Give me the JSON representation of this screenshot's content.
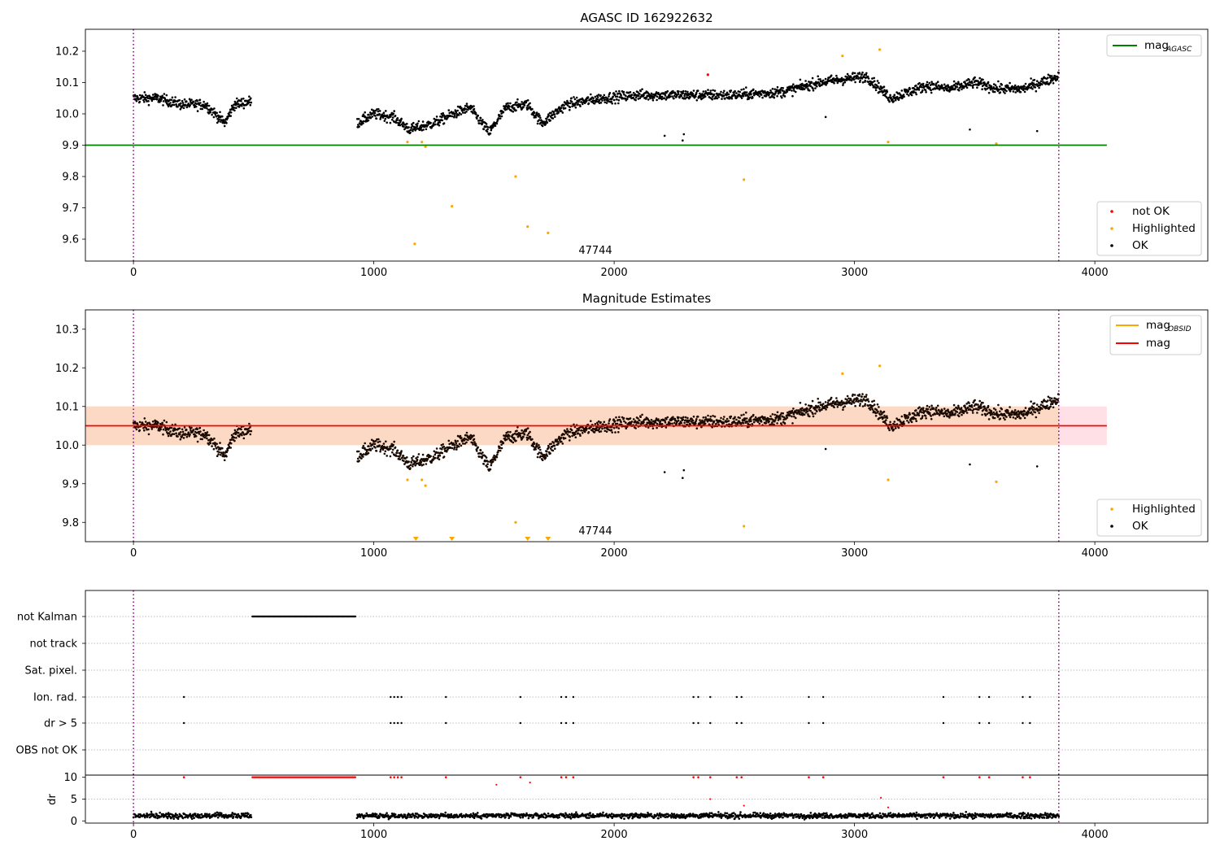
{
  "chart_data": [
    {
      "type": "scatter",
      "title": "AGASC ID 162922632",
      "annotation": "47744",
      "xlim": [
        -200,
        4470
      ],
      "ylim": [
        9.53,
        10.27
      ],
      "xticks": [
        0,
        1000,
        2000,
        3000,
        4000
      ],
      "yticks": [
        9.6,
        9.7,
        9.8,
        9.9,
        10.0,
        10.1,
        10.2
      ],
      "vlines": [
        0,
        3850
      ],
      "hline": {
        "y": 9.9,
        "xmin": -200,
        "xmax": 4050,
        "color": "#008000",
        "label_main": "mag",
        "label_sub": "AGASC"
      },
      "legend_lines": [
        {
          "label_main": "mag",
          "label_sub": "AGASC",
          "color": "#008000"
        }
      ],
      "legend_points": [
        {
          "label": "not OK",
          "color": "#ff0000"
        },
        {
          "label": "Highlighted",
          "color": "#ffa500"
        },
        {
          "label": "OK",
          "color": "#000000"
        }
      ],
      "series": [
        {
          "name": "OK",
          "color": "#000000",
          "trend": [
            [
              0,
              10.05
            ],
            [
              100,
              10.05
            ],
            [
              200,
              10.03
            ],
            [
              300,
              10.03
            ],
            [
              340,
              10.0
            ],
            [
              380,
              9.97
            ],
            [
              420,
              10.03
            ],
            [
              490,
              10.04
            ],
            [
              930,
              9.97
            ],
            [
              1000,
              10.0
            ],
            [
              1080,
              9.99
            ],
            [
              1150,
              9.95
            ],
            [
              1250,
              9.97
            ],
            [
              1330,
              10.0
            ],
            [
              1400,
              10.02
            ],
            [
              1480,
              9.94
            ],
            [
              1550,
              10.02
            ],
            [
              1640,
              10.03
            ],
            [
              1700,
              9.97
            ],
            [
              1800,
              10.03
            ],
            [
              1950,
              10.05
            ],
            [
              2100,
              10.06
            ],
            [
              2300,
              10.06
            ],
            [
              2500,
              10.06
            ],
            [
              2700,
              10.07
            ],
            [
              2850,
              10.1
            ],
            [
              3050,
              10.12
            ],
            [
              3150,
              10.05
            ],
            [
              3300,
              10.09
            ],
            [
              3400,
              10.08
            ],
            [
              3500,
              10.1
            ],
            [
              3600,
              10.08
            ],
            [
              3700,
              10.08
            ],
            [
              3850,
              10.12
            ]
          ],
          "gaps": [
            [
              490,
              930
            ]
          ]
        },
        {
          "name": "Highlighted",
          "color": "#ffa500",
          "points": [
            [
              1140,
              9.91
            ],
            [
              1200,
              9.91
            ],
            [
              1215,
              9.895
            ],
            [
              1170,
              9.585
            ],
            [
              1325,
              9.705
            ],
            [
              1590,
              9.8
            ],
            [
              1640,
              9.64
            ],
            [
              1725,
              9.62
            ],
            [
              2540,
              9.79
            ],
            [
              2950,
              10.185
            ],
            [
              3105,
              10.205
            ],
            [
              3140,
              9.91
            ],
            [
              3590,
              9.905
            ]
          ]
        },
        {
          "name": "not OK",
          "color": "#ff0000",
          "points": [
            [
              2390,
              10.125
            ]
          ]
        }
      ],
      "extra_ok_points": [
        [
          2210,
          9.93
        ],
        [
          2285,
          9.915
        ],
        [
          2290,
          9.935
        ],
        [
          2880,
          9.99
        ],
        [
          3480,
          9.95
        ],
        [
          3760,
          9.945
        ]
      ]
    },
    {
      "type": "scatter",
      "title": "Magnitude Estimates",
      "annotation": "47744",
      "xlim": [
        -200,
        4470
      ],
      "ylim": [
        9.75,
        10.35
      ],
      "xticks": [
        0,
        1000,
        2000,
        3000,
        4000
      ],
      "yticks": [
        9.8,
        9.9,
        10.0,
        10.1,
        10.2,
        10.3
      ],
      "vlines": [
        0,
        3850
      ],
      "band_outer": {
        "ymin": 10.0,
        "ymax": 10.1,
        "color": "#ffe0e6"
      },
      "band_inner": {
        "ymin": 10.0,
        "ymax": 10.1,
        "xmax": 3850,
        "color": "#fcd9c4"
      },
      "hline": {
        "y": 10.05,
        "xmin": -200,
        "xmax": 4050,
        "color": "#ff0000",
        "label_main": "mag",
        "label_sub": ""
      },
      "legend_lines": [
        {
          "label_main": "mag",
          "label_sub": "OBSID",
          "color": "#ffa500"
        },
        {
          "label_main": "mag",
          "label_sub": "",
          "color": "#ff0000"
        }
      ],
      "legend_points": [
        {
          "label": "Highlighted",
          "color": "#ffa500"
        },
        {
          "label": "OK",
          "color": "#000000"
        }
      ],
      "clipped_markers_x": [
        1175,
        1325,
        1640,
        1725
      ]
    },
    {
      "type": "scatter",
      "xlim": [
        -200,
        4470
      ],
      "xticks": [
        0,
        1000,
        2000,
        3000,
        4000
      ],
      "flag_rows": [
        "not Kalman",
        "not track",
        "Sat. pixel.",
        "Ion. rad.",
        "dr > 5",
        "OBS not OK"
      ],
      "flag_ranges": [
        {
          "row": "not Kalman",
          "x": [
            495,
            925
          ]
        }
      ],
      "flag_events_x": [
        210,
        1070,
        1085,
        1100,
        1115,
        1300,
        1610,
        1780,
        1800,
        1830,
        2330,
        2350,
        2400,
        2510,
        2530,
        2810,
        2870,
        3370,
        3520,
        3560,
        3700,
        3730
      ],
      "dr_ylabel": "dr",
      "dr_yticks": [
        0,
        5,
        10
      ],
      "dr_ylim": [
        -0.5,
        10.5
      ],
      "dr_outliers": [
        [
          1510,
          8.3
        ],
        [
          1650,
          8.8
        ],
        [
          2400,
          5.0
        ],
        [
          2540,
          3.5
        ],
        [
          3110,
          5.3
        ],
        [
          3140,
          3.1
        ]
      ]
    }
  ]
}
